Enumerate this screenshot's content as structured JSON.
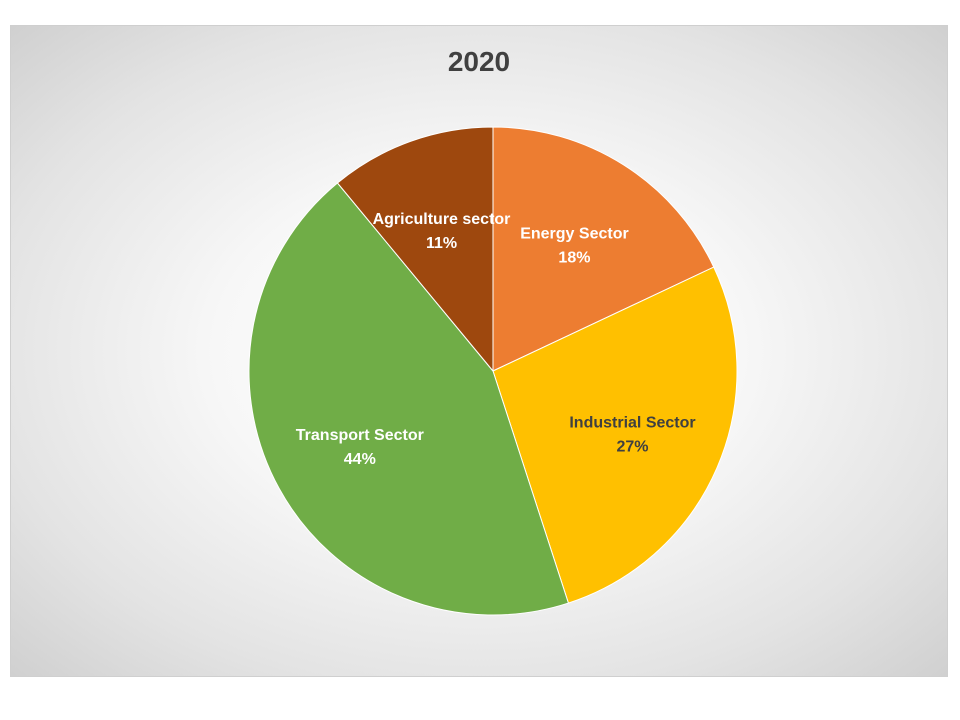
{
  "chart_data": {
    "type": "pie",
    "title": "2020",
    "slices": [
      {
        "label": "Energy Sector",
        "value": 18,
        "value_label": "18%",
        "color": "#ED7D31",
        "text_color": "#ffffff"
      },
      {
        "label": "Industrial Sector",
        "value": 27,
        "value_label": "27%",
        "color": "#FFC000",
        "text_color": "#404040"
      },
      {
        "label": "Transport Sector",
        "value": 44,
        "value_label": "44%",
        "color": "#70AD47",
        "text_color": "#ffffff"
      },
      {
        "label": "Agriculture sector",
        "value": 11,
        "value_label": "11%",
        "color": "#9E480E",
        "text_color": "#ffffff"
      }
    ],
    "start_angle": "12 o'clock",
    "direction": "clockwise",
    "legend": "none"
  }
}
